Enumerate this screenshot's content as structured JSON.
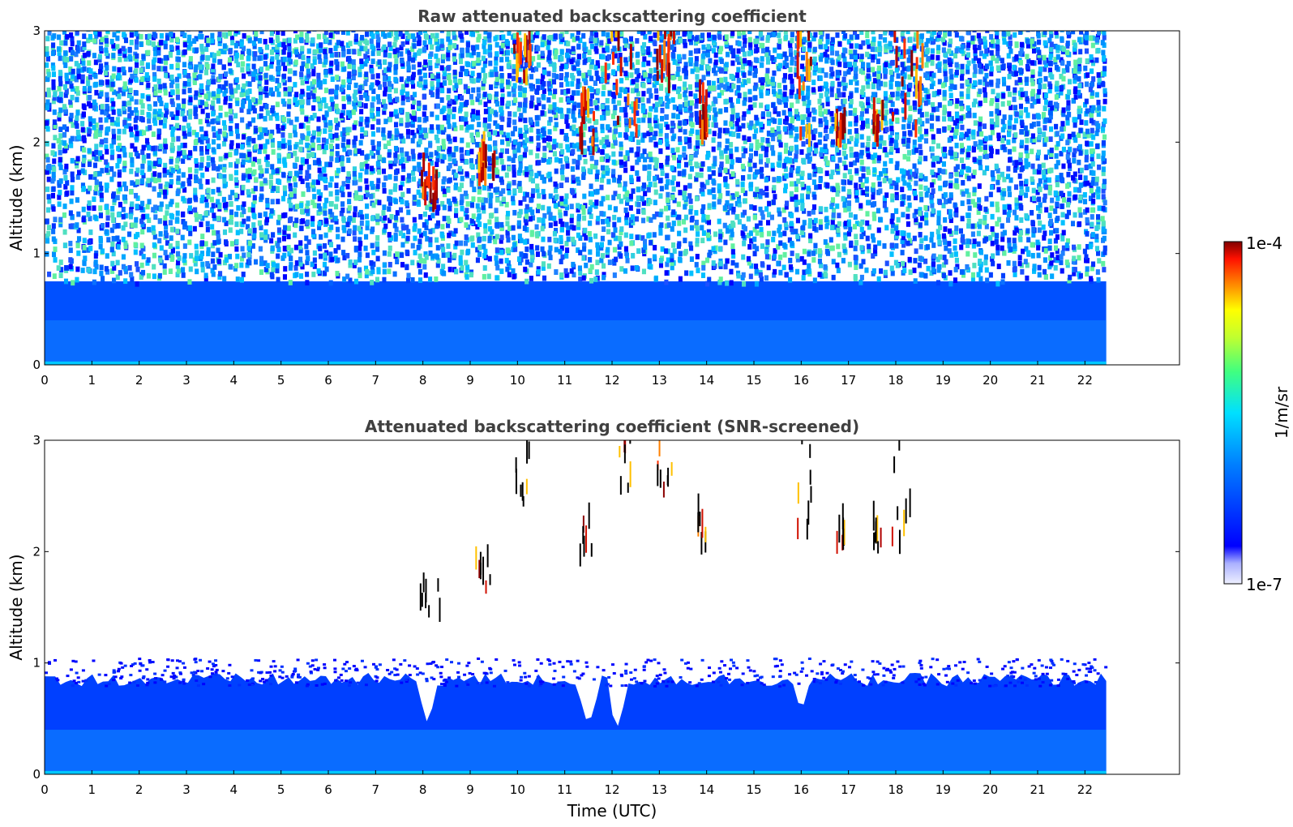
{
  "chart_data": [
    {
      "type": "heatmap",
      "title": "Raw attenuated backscattering coefficient",
      "xlabel": "",
      "ylabel": "Altitude (km)",
      "xlim": [
        0,
        24
      ],
      "ylim": [
        0,
        3
      ],
      "xticks": [
        "0",
        "1",
        "2",
        "3",
        "4",
        "5",
        "6",
        "7",
        "8",
        "9",
        "10",
        "11",
        "12",
        "13",
        "14",
        "15",
        "16",
        "17",
        "18",
        "19",
        "20",
        "21",
        "22"
      ],
      "yticks": [
        "0",
        "1",
        "2",
        "3"
      ],
      "data_end_hour": 22.45,
      "description_values": {
        "boundary_layer_top_km": 0.75,
        "noise_region_km": [
          1.0,
          3.0
        ]
      },
      "cloud_features": [
        {
          "x": [
            7.9,
            8.35
          ],
          "y": [
            1.35,
            1.75
          ],
          "intensity": "high"
        },
        {
          "x": [
            9.1,
            9.5
          ],
          "y": [
            1.6,
            1.9
          ],
          "intensity": "medium"
        },
        {
          "x": [
            9.9,
            10.3
          ],
          "y": [
            2.4,
            2.85
          ],
          "intensity": "medium"
        },
        {
          "x": [
            11.3,
            11.6
          ],
          "y": [
            1.85,
            2.3
          ],
          "intensity": "high"
        },
        {
          "x": [
            11.8,
            12.5
          ],
          "y": [
            2.0,
            3.0
          ],
          "intensity": "high"
        },
        {
          "x": [
            12.9,
            13.3
          ],
          "y": [
            2.3,
            3.0
          ],
          "intensity": "high"
        },
        {
          "x": [
            13.8,
            14.0
          ],
          "y": [
            1.95,
            2.35
          ],
          "intensity": "high"
        },
        {
          "x": [
            15.9,
            16.2
          ],
          "y": [
            1.95,
            3.0
          ],
          "intensity": "high"
        },
        {
          "x": [
            16.7,
            16.9
          ],
          "y": [
            1.95,
            2.2
          ],
          "intensity": "high"
        },
        {
          "x": [
            17.5,
            17.7
          ],
          "y": [
            1.95,
            2.2
          ],
          "intensity": "high"
        },
        {
          "x": [
            17.9,
            18.6
          ],
          "y": [
            1.95,
            3.0
          ],
          "intensity": "high"
        }
      ]
    },
    {
      "type": "heatmap",
      "title": "Attenuated backscattering coefficient (SNR-screened)",
      "xlabel": "Time (UTC)",
      "ylabel": "Altitude (km)",
      "xlim": [
        0,
        24
      ],
      "ylim": [
        0,
        3
      ],
      "xticks": [
        "0",
        "1",
        "2",
        "3",
        "4",
        "5",
        "6",
        "7",
        "8",
        "9",
        "10",
        "11",
        "12",
        "13",
        "14",
        "15",
        "16",
        "17",
        "18",
        "19",
        "20",
        "21",
        "22"
      ],
      "yticks": [
        "0",
        "1",
        "2",
        "3"
      ],
      "data_end_hour": 22.45,
      "boundary_layer_top_km": 0.9,
      "dips": [
        {
          "x": 8.1,
          "depth_km": 0.45
        },
        {
          "x": 11.5,
          "depth_km": 0.42
        },
        {
          "x": 12.1,
          "depth_km": 0.4
        },
        {
          "x": 16.0,
          "depth_km": 0.55
        }
      ]
    }
  ],
  "colorbar": {
    "max_label": "1e-4",
    "min_label": "1e-7",
    "unit_label": "1/m/sr",
    "colormap": "jet"
  }
}
